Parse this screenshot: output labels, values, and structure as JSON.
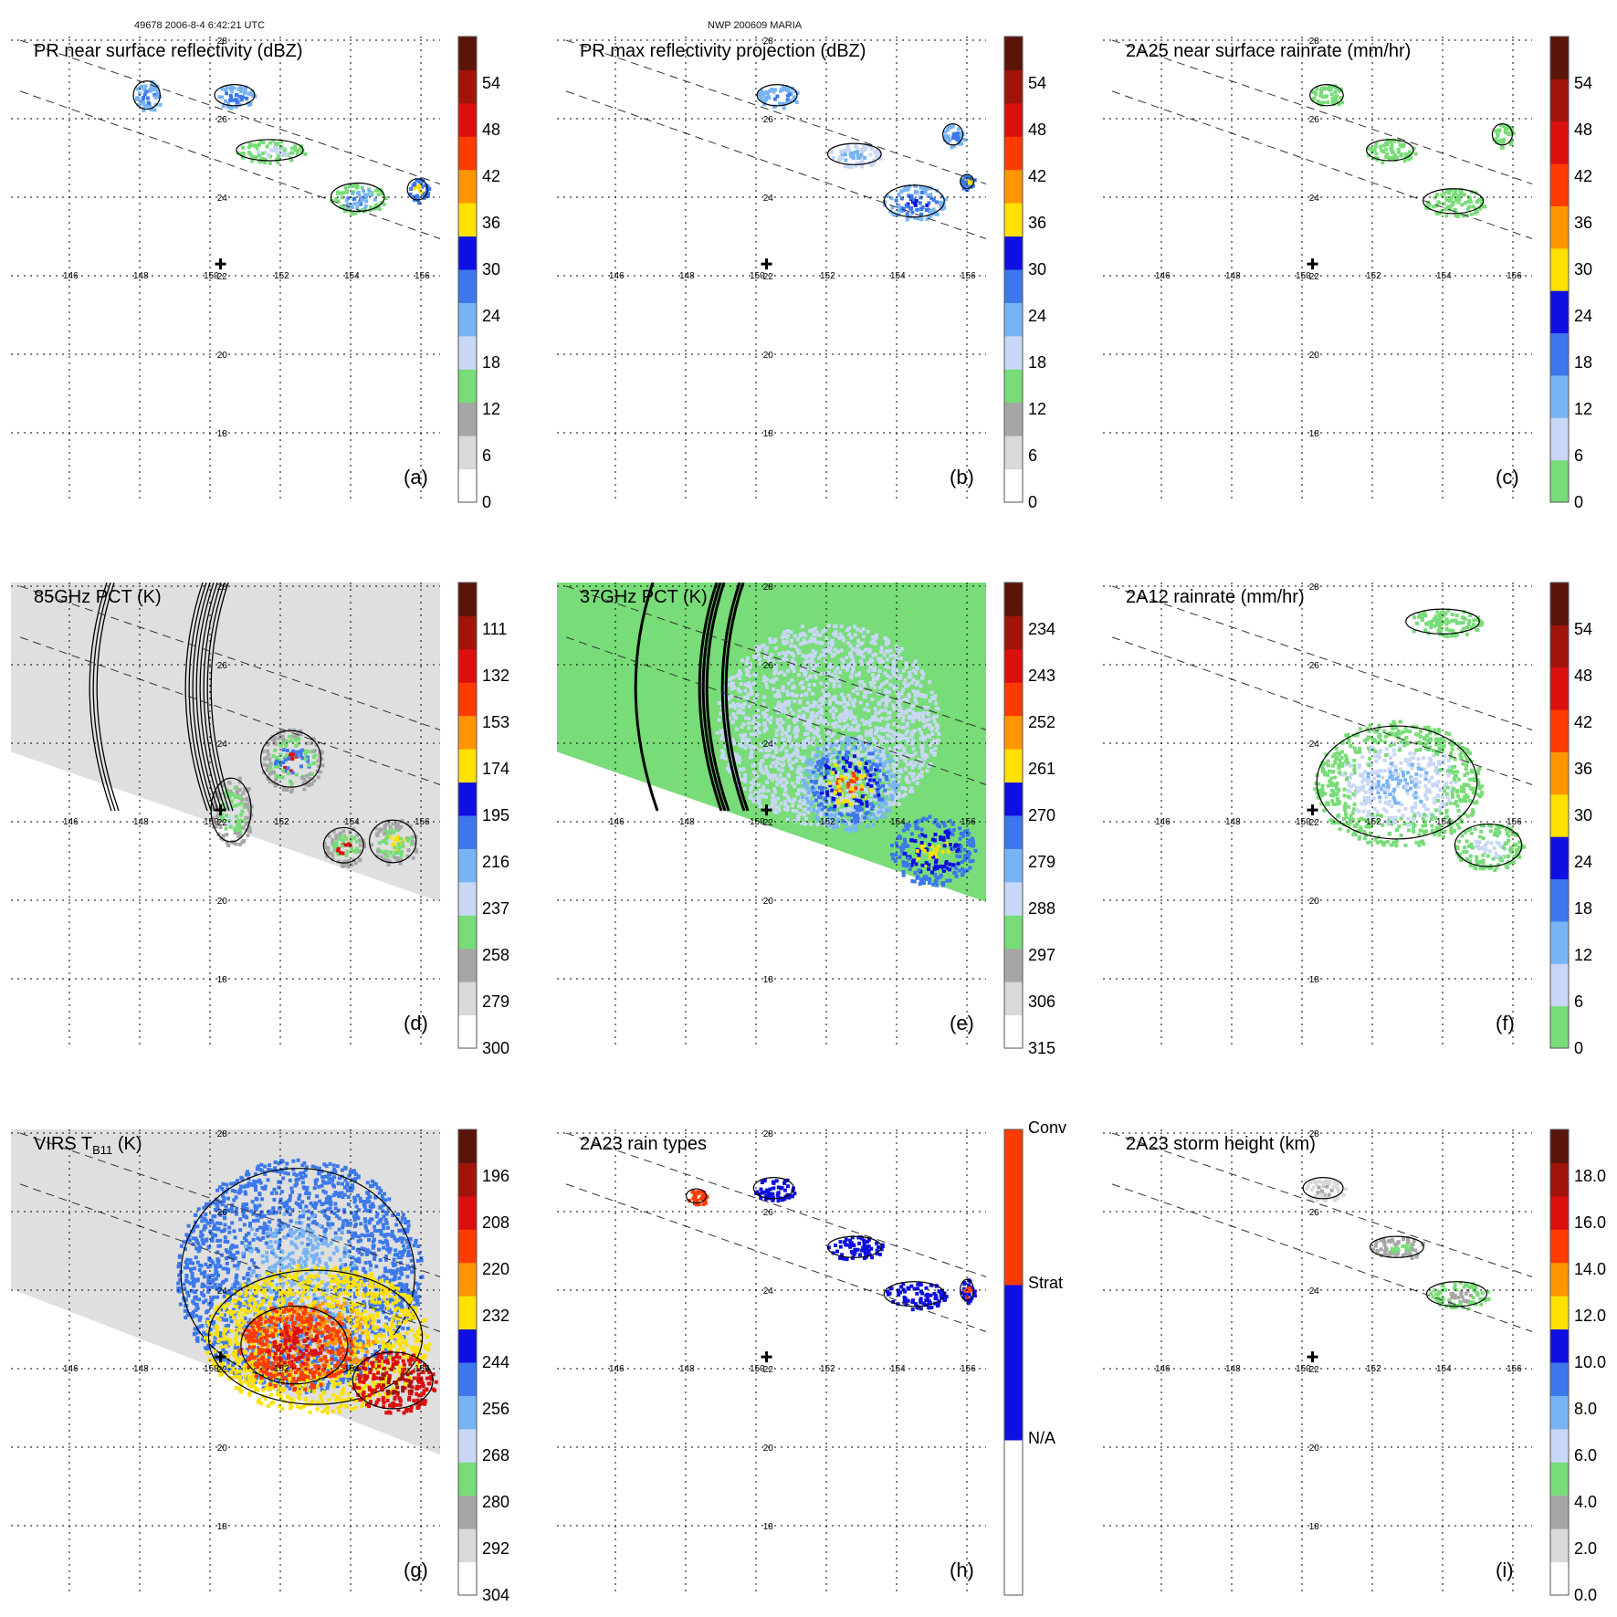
{
  "header": {
    "left": "49678 2006-8-4 6:42:21 UTC",
    "center": "NWP 200609 MARIA"
  },
  "lon_ticks": [
    "146",
    "148",
    "150",
    "152",
    "154",
    "156"
  ],
  "lat_ticks": [
    "28",
    "26",
    "24",
    "22",
    "20",
    "18"
  ],
  "colors": {
    "white": "#ffffff",
    "lightgray": "#d9d9d9",
    "gray": "#a6a6a6",
    "green": "#78dc78",
    "paleblue": "#c8d7f5",
    "lightblue": "#78b4f5",
    "midblue": "#3c78eb",
    "blue": "#0f0fe1",
    "yellow": "#ffe100",
    "orange": "#ff9600",
    "redorange": "#ff3c00",
    "red": "#dc0f0f",
    "darkred": "#a0140a",
    "maroon": "#5a140a"
  },
  "chart_data": [
    {
      "type": "heatmap",
      "panel": "(a)",
      "title": "PR near surface reflectivity (dBZ)",
      "colorbar_ticks": [
        "0",
        "6",
        "12",
        "18",
        "24",
        "30",
        "36",
        "42",
        "48",
        "54"
      ],
      "colorbar_levels": [
        "white",
        "lightgray",
        "gray",
        "green",
        "paleblue",
        "lightblue",
        "midblue",
        "blue",
        "yellow",
        "orange",
        "redorange",
        "red",
        "darkred",
        "maroon"
      ],
      "swath": "PR",
      "rain_regions": [
        {
          "lon": 148.2,
          "lat": 26.6,
          "rx": 0.4,
          "ry": 0.4,
          "colors": [
            "lightblue",
            "midblue"
          ]
        },
        {
          "lon": 150.7,
          "lat": 26.6,
          "rx": 0.6,
          "ry": 0.3,
          "colors": [
            "lightblue",
            "midblue"
          ]
        },
        {
          "lon": 151.7,
          "lat": 25.2,
          "rx": 1.0,
          "ry": 0.3,
          "colors": [
            "green",
            "paleblue"
          ]
        },
        {
          "lon": 154.2,
          "lat": 24.0,
          "rx": 0.8,
          "ry": 0.4,
          "colors": [
            "green",
            "lightblue",
            "midblue"
          ]
        },
        {
          "lon": 155.9,
          "lat": 24.2,
          "rx": 0.3,
          "ry": 0.3,
          "colors": [
            "midblue",
            "yellow"
          ]
        }
      ]
    },
    {
      "type": "heatmap",
      "panel": "(b)",
      "title": "PR max reflectivity projection (dBZ)",
      "colorbar_ticks": [
        "0",
        "6",
        "12",
        "18",
        "24",
        "30",
        "36",
        "42",
        "48",
        "54"
      ],
      "colorbar_levels": [
        "white",
        "lightgray",
        "gray",
        "green",
        "paleblue",
        "lightblue",
        "midblue",
        "blue",
        "yellow",
        "orange",
        "redorange",
        "red",
        "darkred",
        "maroon"
      ],
      "swath": "PR",
      "rain_regions": [
        {
          "lon": 150.6,
          "lat": 26.6,
          "rx": 0.6,
          "ry": 0.3,
          "colors": [
            "lightblue",
            "midblue"
          ]
        },
        {
          "lon": 152.8,
          "lat": 25.1,
          "rx": 0.8,
          "ry": 0.3,
          "colors": [
            "paleblue",
            "lightblue"
          ]
        },
        {
          "lon": 154.5,
          "lat": 23.9,
          "rx": 0.9,
          "ry": 0.45,
          "colors": [
            "lightblue",
            "midblue",
            "blue"
          ]
        },
        {
          "lon": 155.6,
          "lat": 25.6,
          "rx": 0.3,
          "ry": 0.3,
          "colors": [
            "lightblue",
            "midblue"
          ]
        },
        {
          "lon": 156.0,
          "lat": 24.4,
          "rx": 0.2,
          "ry": 0.2,
          "colors": [
            "midblue",
            "yellow"
          ]
        }
      ]
    },
    {
      "type": "heatmap",
      "panel": "(c)",
      "title": "2A25 near surface rainrate (mm/hr)",
      "colorbar_ticks": [
        "0",
        "6",
        "12",
        "18",
        "24",
        "30",
        "36",
        "42",
        "48",
        "54"
      ],
      "colorbar_levels": [
        "green",
        "paleblue",
        "lightblue",
        "midblue",
        "blue",
        "yellow",
        "orange",
        "redorange",
        "red",
        "darkred",
        "maroon"
      ],
      "swath": "PR",
      "rain_regions": [
        {
          "lon": 150.7,
          "lat": 26.6,
          "rx": 0.5,
          "ry": 0.3,
          "colors": [
            "green"
          ]
        },
        {
          "lon": 152.5,
          "lat": 25.2,
          "rx": 0.7,
          "ry": 0.3,
          "colors": [
            "green"
          ]
        },
        {
          "lon": 154.3,
          "lat": 23.9,
          "rx": 0.9,
          "ry": 0.35,
          "colors": [
            "green"
          ]
        },
        {
          "lon": 155.7,
          "lat": 25.6,
          "rx": 0.3,
          "ry": 0.3,
          "colors": [
            "green"
          ]
        }
      ]
    },
    {
      "type": "heatmap",
      "panel": "(d)",
      "title": "85GHz PCT (K)",
      "colorbar_ticks": [
        "300",
        "279",
        "258",
        "237",
        "216",
        "195",
        "174",
        "153",
        "132",
        "111"
      ],
      "colorbar_levels": [
        "white",
        "lightgray",
        "gray",
        "green",
        "paleblue",
        "lightblue",
        "midblue",
        "blue",
        "yellow",
        "orange",
        "redorange",
        "red",
        "darkred",
        "maroon"
      ],
      "swath": "TMI",
      "background": "lightgray",
      "rain_regions": [
        {
          "lon": 152.3,
          "lat": 23.6,
          "rx": 0.9,
          "ry": 0.8,
          "colors": [
            "gray",
            "green",
            "midblue",
            "red"
          ]
        },
        {
          "lon": 150.6,
          "lat": 22.3,
          "rx": 0.6,
          "ry": 0.9,
          "colors": [
            "gray",
            "green",
            "paleblue"
          ]
        },
        {
          "lon": 153.8,
          "lat": 21.4,
          "rx": 0.6,
          "ry": 0.5,
          "colors": [
            "gray",
            "green",
            "red"
          ]
        },
        {
          "lon": 155.2,
          "lat": 21.5,
          "rx": 0.7,
          "ry": 0.6,
          "colors": [
            "gray",
            "green",
            "yellow"
          ]
        }
      ]
    },
    {
      "type": "heatmap",
      "panel": "(e)",
      "title": "37GHz PCT (K)",
      "colorbar_ticks": [
        "315",
        "306",
        "297",
        "288",
        "279",
        "270",
        "261",
        "252",
        "243",
        "234"
      ],
      "colorbar_levels": [
        "white",
        "lightgray",
        "gray",
        "green",
        "paleblue",
        "lightblue",
        "midblue",
        "blue",
        "yellow",
        "orange",
        "redorange",
        "red",
        "darkred",
        "maroon"
      ],
      "swath": "TMI",
      "background": "green",
      "rain_regions": [
        {
          "lon": 152.0,
          "lat": 24.5,
          "rx": 3.2,
          "ry": 2.6,
          "colors": [
            "paleblue"
          ]
        },
        {
          "lon": 152.6,
          "lat": 23.0,
          "rx": 1.4,
          "ry": 1.2,
          "colors": [
            "lightblue",
            "midblue",
            "blue",
            "yellow",
            "redorange"
          ]
        },
        {
          "lon": 155.0,
          "lat": 21.3,
          "rx": 1.2,
          "ry": 0.9,
          "colors": [
            "midblue",
            "blue",
            "yellow"
          ]
        }
      ]
    },
    {
      "type": "heatmap",
      "panel": "(f)",
      "title": "2A12 rainrate (mm/hr)",
      "colorbar_ticks": [
        "0",
        "6",
        "12",
        "18",
        "24",
        "30",
        "36",
        "42",
        "48",
        "54"
      ],
      "colorbar_levels": [
        "green",
        "paleblue",
        "lightblue",
        "midblue",
        "blue",
        "yellow",
        "orange",
        "redorange",
        "red",
        "darkred",
        "maroon"
      ],
      "swath": "TMI",
      "rain_regions": [
        {
          "lon": 152.7,
          "lat": 23.0,
          "rx": 2.4,
          "ry": 1.6,
          "colors": [
            "green",
            "paleblue",
            "lightblue"
          ]
        },
        {
          "lon": 154.0,
          "lat": 27.1,
          "rx": 1.1,
          "ry": 0.35,
          "colors": [
            "green"
          ]
        },
        {
          "lon": 155.3,
          "lat": 21.4,
          "rx": 1.0,
          "ry": 0.6,
          "colors": [
            "green",
            "paleblue"
          ]
        }
      ]
    },
    {
      "type": "heatmap",
      "panel": "(g)",
      "title": "VIRS T",
      "title_sub": "B11",
      "title_unit": " (K)",
      "colorbar_ticks": [
        "304",
        "292",
        "280",
        "268",
        "256",
        "244",
        "232",
        "220",
        "208",
        "196"
      ],
      "colorbar_levels": [
        "white",
        "lightgray",
        "gray",
        "green",
        "paleblue",
        "lightblue",
        "midblue",
        "blue",
        "yellow",
        "orange",
        "redorange",
        "red",
        "darkred",
        "maroon"
      ],
      "swath": "VIRS",
      "background": "lightgray",
      "rain_regions": [
        {
          "lon": 152.5,
          "lat": 24.4,
          "rx": 3.5,
          "ry": 3.0,
          "colors": [
            "midblue",
            "lightblue"
          ]
        },
        {
          "lon": 153.0,
          "lat": 22.8,
          "rx": 3.2,
          "ry": 1.9,
          "colors": [
            "yellow",
            "orange"
          ]
        },
        {
          "lon": 152.4,
          "lat": 22.6,
          "rx": 1.6,
          "ry": 1.1,
          "colors": [
            "redorange",
            "red"
          ]
        },
        {
          "lon": 155.2,
          "lat": 21.7,
          "rx": 1.2,
          "ry": 0.8,
          "colors": [
            "red",
            "darkred"
          ]
        }
      ]
    },
    {
      "type": "heatmap",
      "panel": "(h)",
      "title": "2A23 rain types",
      "colorbar_ticks": [
        "N/A",
        "Strat",
        "Conv"
      ],
      "colorbar_levels": [
        "white",
        "blue",
        "redorange"
      ],
      "swath": "PR",
      "rain_regions": [
        {
          "lon": 150.5,
          "lat": 26.6,
          "rx": 0.6,
          "ry": 0.3,
          "colors": [
            "blue"
          ]
        },
        {
          "lon": 148.3,
          "lat": 26.4,
          "rx": 0.3,
          "ry": 0.2,
          "colors": [
            "redorange"
          ]
        },
        {
          "lon": 152.8,
          "lat": 25.1,
          "rx": 0.8,
          "ry": 0.3,
          "colors": [
            "blue"
          ]
        },
        {
          "lon": 154.5,
          "lat": 23.9,
          "rx": 0.9,
          "ry": 0.35,
          "colors": [
            "blue"
          ]
        },
        {
          "lon": 156.0,
          "lat": 24.0,
          "rx": 0.2,
          "ry": 0.3,
          "colors": [
            "blue",
            "redorange"
          ]
        }
      ]
    },
    {
      "type": "heatmap",
      "panel": "(i)",
      "title": "2A23 storm height (km)",
      "colorbar_ticks": [
        "0.0",
        "2.0",
        "4.0",
        "6.0",
        "8.0",
        "10.0",
        "12.0",
        "14.0",
        "16.0",
        "18.0"
      ],
      "colorbar_levels": [
        "white",
        "lightgray",
        "gray",
        "green",
        "paleblue",
        "lightblue",
        "midblue",
        "blue",
        "yellow",
        "orange",
        "redorange",
        "red",
        "darkred",
        "maroon"
      ],
      "swath": "PR",
      "rain_regions": [
        {
          "lon": 150.6,
          "lat": 26.6,
          "rx": 0.6,
          "ry": 0.3,
          "colors": [
            "lightgray",
            "gray"
          ]
        },
        {
          "lon": 152.7,
          "lat": 25.1,
          "rx": 0.8,
          "ry": 0.3,
          "colors": [
            "gray",
            "green"
          ]
        },
        {
          "lon": 154.4,
          "lat": 23.9,
          "rx": 0.9,
          "ry": 0.35,
          "colors": [
            "green",
            "gray"
          ]
        }
      ]
    }
  ]
}
